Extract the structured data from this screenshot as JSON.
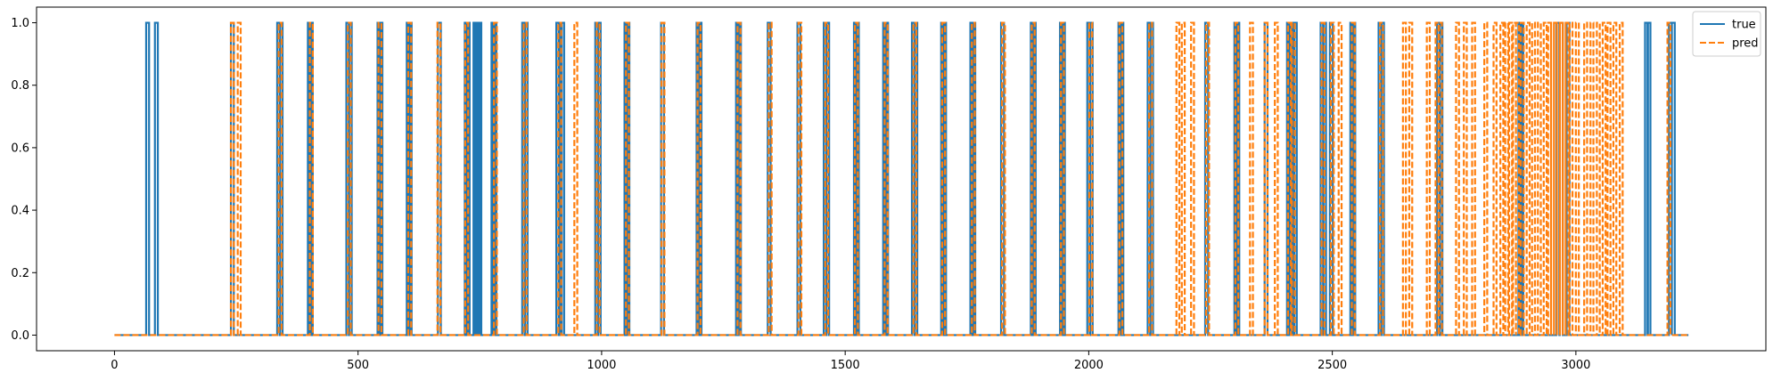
{
  "chart_data": {
    "type": "line",
    "title": "",
    "xlabel": "",
    "ylabel": "",
    "xlim": [
      -160,
      3390
    ],
    "ylim": [
      -0.05,
      1.05
    ],
    "x_ticks": [
      0,
      500,
      1000,
      1500,
      2000,
      2500,
      3000
    ],
    "x_tick_labels": [
      "0",
      "500",
      "1000",
      "1500",
      "2000",
      "2500",
      "3000"
    ],
    "y_ticks": [
      0.0,
      0.2,
      0.4,
      0.6,
      0.8,
      1.0
    ],
    "y_tick_labels": [
      "0.0",
      "0.2",
      "0.4",
      "0.6",
      "0.8",
      "1.0"
    ],
    "x_range": [
      0,
      3231
    ],
    "grid": false,
    "legend_position": "top-right",
    "series": [
      {
        "name": "true",
        "color": "#1f77b4",
        "line_style": "solid",
        "spike_x": [
          68,
          86,
          242,
          337,
          342,
          400,
          404,
          479,
          484,
          543,
          547,
          603,
          607,
          667,
          722,
          726,
          740,
          743,
          746,
          750,
          777,
          781,
          840,
          845,
          910,
          915,
          920,
          990,
          995,
          1050,
          1054,
          1125,
          1198,
          1202,
          1279,
          1283,
          1344,
          1405,
          1459,
          1464,
          1521,
          1525,
          1581,
          1585,
          1640,
          1645,
          1700,
          1704,
          1760,
          1764,
          1823,
          1884,
          1888,
          1944,
          1948,
          2000,
          2005,
          2064,
          2068,
          2124,
          2129,
          2242,
          2302,
          2306,
          2364,
          2410,
          2414,
          2419,
          2424,
          2479,
          2484,
          2498,
          2540,
          2544,
          2598,
          2603,
          2718,
          2723,
          2885,
          2889,
          2963,
          2970,
          2984,
          3145,
          3150,
          3194,
          3200
        ]
      },
      {
        "name": "pred",
        "color": "#ff7f0e",
        "line_style": "dashed",
        "spike_x": [
          242,
          256,
          340,
          404,
          482,
          545,
          606,
          666,
          723,
          782,
          843,
          914,
          947,
          993,
          1053,
          1126,
          1200,
          1282,
          1346,
          1407,
          1462,
          1523,
          1584,
          1643,
          1702,
          1763,
          1825,
          1886,
          1946,
          2004,
          2066,
          2127,
          2183,
          2194,
          2213,
          2244,
          2304,
          2334,
          2364,
          2385,
          2412,
          2420,
          2481,
          2500,
          2516,
          2543,
          2601,
          2648,
          2661,
          2697,
          2715,
          2722,
          2757,
          2773,
          2790,
          2815,
          2834,
          2848,
          2858,
          2866,
          2874,
          2880,
          2890,
          2902,
          2913,
          2925,
          2937,
          2946,
          2952,
          2958,
          2964,
          2970,
          2976,
          2982,
          2990,
          3003,
          3020,
          3033,
          3046,
          3058,
          3068,
          3080,
          3093,
          3191
        ]
      }
    ]
  }
}
